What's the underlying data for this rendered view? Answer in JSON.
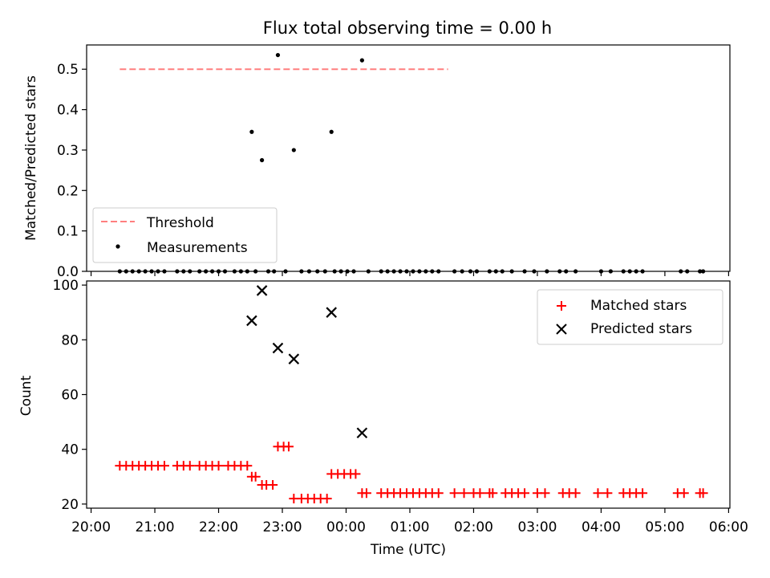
{
  "chart_data": [
    {
      "type": "scatter",
      "title": "Flux total observing time = 0.00 h",
      "ylabel": "Matched/Predicted stars",
      "xlabel": "",
      "ylim": [
        0,
        0.56
      ],
      "yticks": [
        "0.0",
        "0.1",
        "0.2",
        "0.3",
        "0.4",
        "0.5"
      ],
      "legend_placement": "lower-left",
      "series": [
        {
          "name": "Threshold",
          "style": "dashed-line",
          "color": "#ff7f7f",
          "points": [
            {
              "x": 20.45,
              "y": 0.5
            },
            {
              "x": 25.6,
              "y": 0.5
            }
          ]
        },
        {
          "name": "Measurements",
          "style": "dot",
          "color": "#000000",
          "points": [
            {
              "x": 22.52,
              "y": 0.345
            },
            {
              "x": 22.68,
              "y": 0.275
            },
            {
              "x": 22.93,
              "y": 0.535
            },
            {
              "x": 23.18,
              "y": 0.3
            },
            {
              "x": 23.77,
              "y": 0.345
            },
            {
              "x": 24.25,
              "y": 0.522
            }
          ],
          "zero_x": [
            20.45,
            20.55,
            20.65,
            20.75,
            20.85,
            20.95,
            21.05,
            21.15,
            21.35,
            21.45,
            21.55,
            21.7,
            21.8,
            21.9,
            22.0,
            22.1,
            22.25,
            22.35,
            22.45,
            22.58,
            22.78,
            22.87,
            23.05,
            23.3,
            23.42,
            23.55,
            23.67,
            23.82,
            23.92,
            24.02,
            24.12,
            24.35,
            24.55,
            24.65,
            24.75,
            24.85,
            24.95,
            25.05,
            25.15,
            25.25,
            25.35,
            25.45,
            25.7,
            25.82,
            25.95,
            26.05,
            26.25,
            26.35,
            26.45,
            26.6,
            26.8,
            26.95,
            27.15,
            27.35,
            27.45,
            27.6,
            28.0,
            28.15,
            28.35,
            28.45,
            28.55,
            28.65,
            29.25,
            29.35,
            29.55,
            29.6
          ]
        }
      ]
    },
    {
      "type": "scatter",
      "title": "",
      "ylabel": "Count",
      "xlabel": "Time (UTC)",
      "ylim": [
        18.5,
        101.5
      ],
      "yticks": [
        "20",
        "40",
        "60",
        "80",
        "100"
      ],
      "xlim": [
        19.93,
        30.02
      ],
      "xticks": [
        {
          "x": 20,
          "label": "20:00"
        },
        {
          "x": 21,
          "label": "21:00"
        },
        {
          "x": 22,
          "label": "22:00"
        },
        {
          "x": 23,
          "label": "23:00"
        },
        {
          "x": 24,
          "label": "00:00"
        },
        {
          "x": 25,
          "label": "01:00"
        },
        {
          "x": 26,
          "label": "02:00"
        },
        {
          "x": 27,
          "label": "03:00"
        },
        {
          "x": 28,
          "label": "04:00"
        },
        {
          "x": 29,
          "label": "05:00"
        },
        {
          "x": 30,
          "label": "06:00"
        }
      ],
      "legend_placement": "upper-right",
      "series": [
        {
          "name": "Matched stars",
          "marker": "plus",
          "color": "#ff0000",
          "points": [
            {
              "x": 20.45,
              "y": 34
            },
            {
              "x": 20.55,
              "y": 34
            },
            {
              "x": 20.65,
              "y": 34
            },
            {
              "x": 20.75,
              "y": 34
            },
            {
              "x": 20.85,
              "y": 34
            },
            {
              "x": 20.95,
              "y": 34
            },
            {
              "x": 21.05,
              "y": 34
            },
            {
              "x": 21.15,
              "y": 34
            },
            {
              "x": 21.35,
              "y": 34
            },
            {
              "x": 21.45,
              "y": 34
            },
            {
              "x": 21.55,
              "y": 34
            },
            {
              "x": 21.7,
              "y": 34
            },
            {
              "x": 21.8,
              "y": 34
            },
            {
              "x": 21.9,
              "y": 34
            },
            {
              "x": 22.0,
              "y": 34
            },
            {
              "x": 22.15,
              "y": 34
            },
            {
              "x": 22.25,
              "y": 34
            },
            {
              "x": 22.35,
              "y": 34
            },
            {
              "x": 22.45,
              "y": 34
            },
            {
              "x": 22.52,
              "y": 30
            },
            {
              "x": 22.58,
              "y": 30
            },
            {
              "x": 22.68,
              "y": 27
            },
            {
              "x": 22.75,
              "y": 27
            },
            {
              "x": 22.85,
              "y": 27
            },
            {
              "x": 22.93,
              "y": 41
            },
            {
              "x": 23.02,
              "y": 41
            },
            {
              "x": 23.1,
              "y": 41
            },
            {
              "x": 23.18,
              "y": 22
            },
            {
              "x": 23.3,
              "y": 22
            },
            {
              "x": 23.4,
              "y": 22
            },
            {
              "x": 23.5,
              "y": 22
            },
            {
              "x": 23.6,
              "y": 22
            },
            {
              "x": 23.7,
              "y": 22
            },
            {
              "x": 23.77,
              "y": 31
            },
            {
              "x": 23.87,
              "y": 31
            },
            {
              "x": 23.97,
              "y": 31
            },
            {
              "x": 24.07,
              "y": 31
            },
            {
              "x": 24.15,
              "y": 31
            },
            {
              "x": 24.25,
              "y": 24
            },
            {
              "x": 24.32,
              "y": 24
            },
            {
              "x": 24.55,
              "y": 24
            },
            {
              "x": 24.65,
              "y": 24
            },
            {
              "x": 24.75,
              "y": 24
            },
            {
              "x": 24.85,
              "y": 24
            },
            {
              "x": 24.95,
              "y": 24
            },
            {
              "x": 25.05,
              "y": 24
            },
            {
              "x": 25.15,
              "y": 24
            },
            {
              "x": 25.25,
              "y": 24
            },
            {
              "x": 25.35,
              "y": 24
            },
            {
              "x": 25.45,
              "y": 24
            },
            {
              "x": 25.7,
              "y": 24
            },
            {
              "x": 25.85,
              "y": 24
            },
            {
              "x": 26.0,
              "y": 24
            },
            {
              "x": 26.1,
              "y": 24
            },
            {
              "x": 26.25,
              "y": 24
            },
            {
              "x": 26.3,
              "y": 24
            },
            {
              "x": 26.5,
              "y": 24
            },
            {
              "x": 26.6,
              "y": 24
            },
            {
              "x": 26.7,
              "y": 24
            },
            {
              "x": 26.8,
              "y": 24
            },
            {
              "x": 27.0,
              "y": 24
            },
            {
              "x": 27.12,
              "y": 24
            },
            {
              "x": 27.4,
              "y": 24
            },
            {
              "x": 27.5,
              "y": 24
            },
            {
              "x": 27.6,
              "y": 24
            },
            {
              "x": 27.95,
              "y": 24
            },
            {
              "x": 28.1,
              "y": 24
            },
            {
              "x": 28.35,
              "y": 24
            },
            {
              "x": 28.45,
              "y": 24
            },
            {
              "x": 28.55,
              "y": 24
            },
            {
              "x": 28.65,
              "y": 24
            },
            {
              "x": 29.2,
              "y": 24
            },
            {
              "x": 29.3,
              "y": 24
            },
            {
              "x": 29.55,
              "y": 24
            },
            {
              "x": 29.6,
              "y": 24
            }
          ]
        },
        {
          "name": "Predicted stars",
          "marker": "x",
          "color": "#000000",
          "points": [
            {
              "x": 22.52,
              "y": 87
            },
            {
              "x": 22.68,
              "y": 98
            },
            {
              "x": 22.93,
              "y": 77
            },
            {
              "x": 23.18,
              "y": 73
            },
            {
              "x": 23.77,
              "y": 90
            },
            {
              "x": 24.25,
              "y": 46
            }
          ]
        }
      ]
    }
  ]
}
